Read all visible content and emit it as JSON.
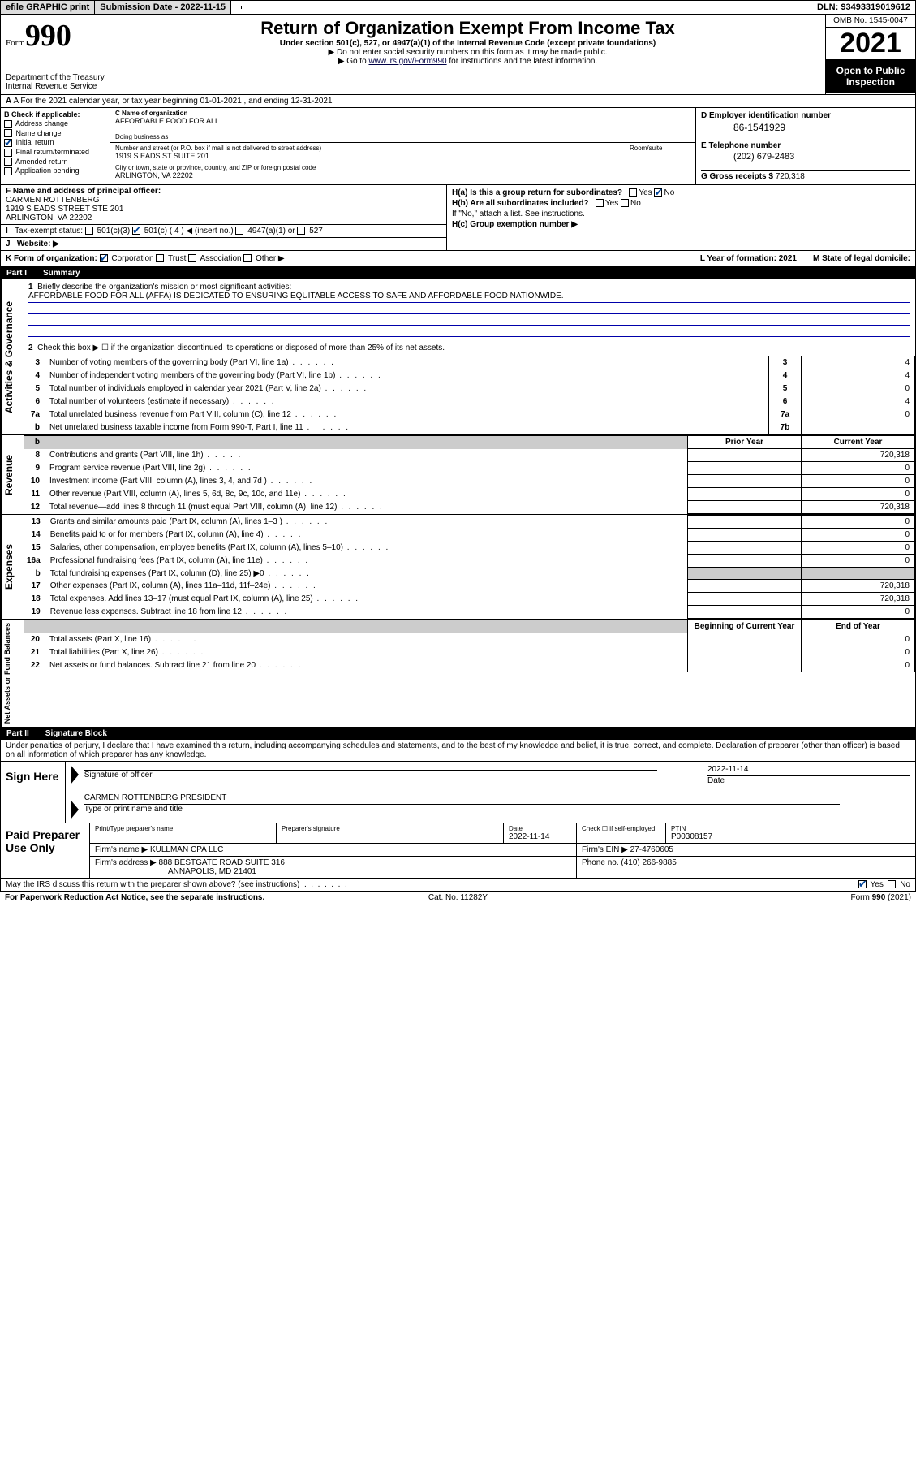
{
  "topbar": {
    "efile": "efile GRAPHIC print",
    "submission_label": "Submission Date - 2022-11-15",
    "dln": "DLN: 93493319019612"
  },
  "header": {
    "form_word": "Form",
    "form_num": "990",
    "title": "Return of Organization Exempt From Income Tax",
    "subtitle": "Under section 501(c), 527, or 4947(a)(1) of the Internal Revenue Code (except private foundations)",
    "instr1": "▶ Do not enter social security numbers on this form as it may be made public.",
    "instr2_pre": "▶ Go to ",
    "instr2_link": "www.irs.gov/Form990",
    "instr2_post": " for instructions and the latest information.",
    "dept": "Department of the Treasury\nInternal Revenue Service",
    "omb": "OMB No. 1545-0047",
    "year": "2021",
    "openpub": "Open to Public Inspection"
  },
  "row_a": "A For the 2021 calendar year, or tax year beginning 01-01-2021   , and ending 12-31-2021",
  "col_b": {
    "label": "B Check if applicable:",
    "items": [
      "Address change",
      "Name change",
      "Initial return",
      "Final return/terminated",
      "Amended return",
      "Application pending"
    ],
    "checked_idx": 2
  },
  "col_c": {
    "name_lbl": "C Name of organization",
    "name": "AFFORDABLE FOOD FOR ALL",
    "dba_lbl": "Doing business as",
    "dba": "",
    "addr_lbl": "Number and street (or P.O. box if mail is not delivered to street address)",
    "room_lbl": "Room/suite",
    "addr": "1919 S EADS ST SUITE 201",
    "city_lbl": "City or town, state or province, country, and ZIP or foreign postal code",
    "city": "ARLINGTON, VA  22202"
  },
  "col_d": {
    "d_lbl": "D Employer identification number",
    "ein": "86-1541929",
    "e_lbl": "E Telephone number",
    "phone": "(202) 679-2483",
    "g_lbl": "G Gross receipts $",
    "gross": "720,318"
  },
  "col_f": {
    "f_lbl": "F Name and address of principal officer:",
    "name": "CARMEN ROTTENBERG",
    "addr1": "1919 S EADS STREET STE 201",
    "addr2": "ARLINGTON, VA  22202",
    "i_lbl": "Tax-exempt status:",
    "i_501c3": "501(c)(3)",
    "i_501c": "501(c) ( 4 ) ◀ (insert no.)",
    "i_4947": "4947(a)(1) or",
    "i_527": "527",
    "j_lbl": "Website: ▶"
  },
  "col_h": {
    "ha": "H(a)  Is this a group return for subordinates?",
    "ha_yes": "Yes",
    "ha_no": "No",
    "hb": "H(b)  Are all subordinates included?",
    "hb_yes": "Yes",
    "hb_no": "No",
    "hb_note": "If \"No,\" attach a list. See instructions.",
    "hc": "H(c)  Group exemption number ▶"
  },
  "row_k": {
    "k_lbl": "K Form of organization:",
    "k_corp": "Corporation",
    "k_trust": "Trust",
    "k_assoc": "Association",
    "k_other": "Other ▶",
    "l_lbl": "L Year of formation: 2021",
    "m_lbl": "M State of legal domicile:"
  },
  "part1": {
    "num": "Part I",
    "title": "Summary"
  },
  "summary": {
    "l1_lbl": "Briefly describe the organization's mission or most significant activities:",
    "l1_text": "AFFORDABLE FOOD FOR ALL (AFFA) IS DEDICATED TO ENSURING EQUITABLE ACCESS TO SAFE AND AFFORDABLE FOOD NATIONWIDE.",
    "l2": "Check this box ▶ ☐  if the organization discontinued its operations or disposed of more than 25% of its net assets.",
    "lines_gov": [
      {
        "n": "3",
        "d": "Number of voting members of the governing body (Part VI, line 1a)",
        "box": "3",
        "v": "4"
      },
      {
        "n": "4",
        "d": "Number of independent voting members of the governing body (Part VI, line 1b)",
        "box": "4",
        "v": "4"
      },
      {
        "n": "5",
        "d": "Total number of individuals employed in calendar year 2021 (Part V, line 2a)",
        "box": "5",
        "v": "0"
      },
      {
        "n": "6",
        "d": "Total number of volunteers (estimate if necessary)",
        "box": "6",
        "v": "4"
      },
      {
        "n": "7a",
        "d": "Total unrelated business revenue from Part VIII, column (C), line 12",
        "box": "7a",
        "v": "0"
      },
      {
        "n": "b",
        "d": "Net unrelated business taxable income from Form 990-T, Part I, line 11",
        "box": "7b",
        "v": ""
      }
    ],
    "prior_hdr": "Prior Year",
    "curr_hdr": "Current Year",
    "lines_rev": [
      {
        "n": "8",
        "d": "Contributions and grants (Part VIII, line 1h)",
        "p": "",
        "c": "720,318"
      },
      {
        "n": "9",
        "d": "Program service revenue (Part VIII, line 2g)",
        "p": "",
        "c": "0"
      },
      {
        "n": "10",
        "d": "Investment income (Part VIII, column (A), lines 3, 4, and 7d )",
        "p": "",
        "c": "0"
      },
      {
        "n": "11",
        "d": "Other revenue (Part VIII, column (A), lines 5, 6d, 8c, 9c, 10c, and 11e)",
        "p": "",
        "c": "0"
      },
      {
        "n": "12",
        "d": "Total revenue—add lines 8 through 11 (must equal Part VIII, column (A), line 12)",
        "p": "",
        "c": "720,318"
      }
    ],
    "lines_exp": [
      {
        "n": "13",
        "d": "Grants and similar amounts paid (Part IX, column (A), lines 1–3 )",
        "p": "",
        "c": "0"
      },
      {
        "n": "14",
        "d": "Benefits paid to or for members (Part IX, column (A), line 4)",
        "p": "",
        "c": "0"
      },
      {
        "n": "15",
        "d": "Salaries, other compensation, employee benefits (Part IX, column (A), lines 5–10)",
        "p": "",
        "c": "0"
      },
      {
        "n": "16a",
        "d": "Professional fundraising fees (Part IX, column (A), line 11e)",
        "p": "",
        "c": "0"
      },
      {
        "n": "b",
        "d": "Total fundraising expenses (Part IX, column (D), line 25) ▶0",
        "p": "shade",
        "c": "shade"
      },
      {
        "n": "17",
        "d": "Other expenses (Part IX, column (A), lines 11a–11d, 11f–24e)",
        "p": "",
        "c": "720,318"
      },
      {
        "n": "18",
        "d": "Total expenses. Add lines 13–17 (must equal Part IX, column (A), line 25)",
        "p": "",
        "c": "720,318"
      },
      {
        "n": "19",
        "d": "Revenue less expenses. Subtract line 18 from line 12",
        "p": "",
        "c": "0"
      }
    ],
    "beg_hdr": "Beginning of Current Year",
    "end_hdr": "End of Year",
    "lines_net": [
      {
        "n": "20",
        "d": "Total assets (Part X, line 16)",
        "p": "",
        "c": "0"
      },
      {
        "n": "21",
        "d": "Total liabilities (Part X, line 26)",
        "p": "",
        "c": "0"
      },
      {
        "n": "22",
        "d": "Net assets or fund balances. Subtract line 21 from line 20",
        "p": "",
        "c": "0"
      }
    ]
  },
  "side_labels": {
    "gov": "Activities & Governance",
    "rev": "Revenue",
    "exp": "Expenses",
    "net": "Net Assets or Fund Balances"
  },
  "part2": {
    "num": "Part II",
    "title": "Signature Block"
  },
  "sig_intro": "Under penalties of perjury, I declare that I have examined this return, including accompanying schedules and statements, and to the best of my knowledge and belief, it is true, correct, and complete. Declaration of preparer (other than officer) is based on all information of which preparer has any knowledge.",
  "sign_here": {
    "label": "Sign Here",
    "sig_lbl": "Signature of officer",
    "date_lbl": "Date",
    "date": "2022-11-14",
    "name": "CARMEN ROTTENBERG  PRESIDENT",
    "name_lbl": "Type or print name and title"
  },
  "preparer": {
    "label": "Paid Preparer Use Only",
    "h_print": "Print/Type preparer's name",
    "h_sig": "Preparer's signature",
    "h_date": "Date",
    "date": "2022-11-14",
    "h_check": "Check ☐ if self-employed",
    "h_ptin": "PTIN",
    "ptin": "P00308157",
    "firm_name_lbl": "Firm's name    ▶",
    "firm_name": "KULLMAN CPA LLC",
    "firm_ein_lbl": "Firm's EIN ▶",
    "firm_ein": "27-4760605",
    "firm_addr_lbl": "Firm's address ▶",
    "firm_addr1": "888 BESTGATE ROAD SUITE 316",
    "firm_addr2": "ANNAPOLIS, MD  21401",
    "phone_lbl": "Phone no.",
    "phone": "(410) 266-9885"
  },
  "footer_q": "May the IRS discuss this return with the preparer shown above? (see instructions)",
  "footer_yes": "Yes",
  "footer_no": "No",
  "bottom": {
    "l": "For Paperwork Reduction Act Notice, see the separate instructions.",
    "m": "Cat. No. 11282Y",
    "r": "Form 990 (2021)"
  }
}
